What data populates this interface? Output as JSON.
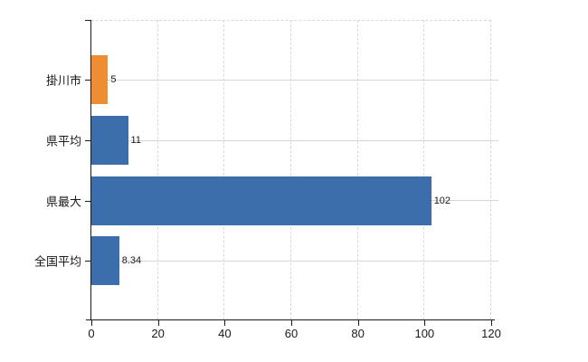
{
  "chart_data": {
    "type": "bar",
    "orientation": "horizontal",
    "title": "",
    "xlabel": "",
    "ylabel": "",
    "categories": [
      "掛川市",
      "県平均",
      "県最大",
      "全国平均"
    ],
    "values": [
      5,
      11,
      102,
      8.34
    ],
    "value_labels": [
      "5",
      "11",
      "102",
      "8.34"
    ],
    "bar_colors": [
      "#ee8e30",
      "#3c6eab",
      "#3c6eab",
      "#3c6eab"
    ],
    "xlim": [
      0,
      120
    ],
    "x_ticks": [
      0,
      20,
      40,
      60,
      80,
      100,
      120
    ],
    "x_tick_labels": [
      "0",
      "20",
      "40",
      "60",
      "80",
      "100",
      "120"
    ],
    "grid": true,
    "legend": false
  },
  "colors": {
    "bar_blue": "#3c6eab",
    "bar_orange": "#ee8e30",
    "axis": "#1a1a1a",
    "vertical_gridline": "#d8d8d8",
    "horizontal_gridline": "#d5d8d2",
    "background": "#ffffff",
    "text": "#1a1a1a"
  }
}
